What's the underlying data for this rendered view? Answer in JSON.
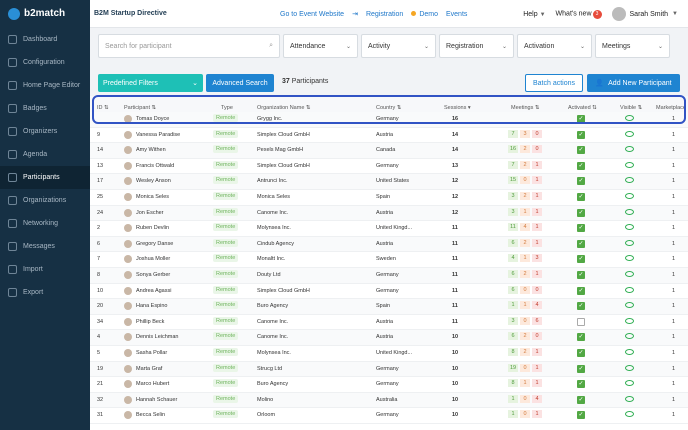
{
  "brand": {
    "logo": "b2match",
    "event": "B2M Startup Directive"
  },
  "topnav": {
    "go_to_event": "Go to Event Website",
    "registration": "Registration",
    "demo": "Demo",
    "events": "Events",
    "help": "Help",
    "whats_new": "What's new",
    "whats_new_count": "3",
    "user": "Sarah Smith"
  },
  "sidebar": [
    {
      "label": "Dashboard",
      "active": false
    },
    {
      "label": "Configuration",
      "active": false
    },
    {
      "label": "Home Page Editor",
      "active": false
    },
    {
      "label": "Badges",
      "active": false
    },
    {
      "label": "Organizers",
      "active": false
    },
    {
      "label": "Agenda",
      "active": false
    },
    {
      "label": "Participants",
      "active": true
    },
    {
      "label": "Organizations",
      "active": false
    },
    {
      "label": "Networking",
      "active": false
    },
    {
      "label": "Messages",
      "active": false
    },
    {
      "label": "Import",
      "active": false
    },
    {
      "label": "Export",
      "active": false
    }
  ],
  "filters": {
    "search_placeholder": "Search for participant",
    "attendance": "Attendance",
    "activity": "Activity",
    "registration": "Registration",
    "activation": "Activation",
    "meetings": "Meetings"
  },
  "actions": {
    "predefined": "Predefined Filters",
    "advanced": "Advanced Search",
    "count": "37",
    "count_label": "Participants",
    "batch": "Batch actions",
    "add": "Add New Participant"
  },
  "columns": {
    "id": "ID",
    "participant": "Participant",
    "type": "Type",
    "org": "Organization Name",
    "country": "Country",
    "sessions": "Sessions",
    "meetings": "Meetings",
    "activated": "Activated",
    "visible": "Visible",
    "marketplace": "Marketplace"
  },
  "rows": [
    {
      "id": "",
      "name": "Tomas Doyce",
      "type": "Remote",
      "org": "Grygg Inc.",
      "country": "Germany",
      "sessions": "16",
      "m1": "",
      "m2": "",
      "m3": "",
      "act": true,
      "mkt": "1"
    },
    {
      "id": "9",
      "name": "Vanessa Paradise",
      "type": "Remote",
      "org": "Simplex Cloud GmbH",
      "country": "Austria",
      "sessions": "14",
      "m1": "7",
      "m2": "3",
      "m3": "0",
      "act": true,
      "mkt": "1"
    },
    {
      "id": "14",
      "name": "Amy Withen",
      "type": "Remote",
      "org": "Pexels Mag GmbH",
      "country": "Canada",
      "sessions": "14",
      "m1": "16",
      "m2": "2",
      "m3": "0",
      "act": true,
      "mkt": "1"
    },
    {
      "id": "13",
      "name": "Francis Ottwald",
      "type": "Remote",
      "org": "Simplex Cloud GmbH",
      "country": "Germany",
      "sessions": "13",
      "m1": "7",
      "m2": "2",
      "m3": "1",
      "act": true,
      "mkt": "1"
    },
    {
      "id": "17",
      "name": "Wesley Anson",
      "type": "Remote",
      "org": "Antrunci Inc.",
      "country": "United States",
      "sessions": "12",
      "m1": "15",
      "m2": "0",
      "m3": "1",
      "act": true,
      "mkt": "1"
    },
    {
      "id": "25",
      "name": "Monica Seles",
      "type": "Remote",
      "org": "Monica Seles",
      "country": "Spain",
      "sessions": "12",
      "m1": "3",
      "m2": "2",
      "m3": "1",
      "act": true,
      "mkt": "1"
    },
    {
      "id": "24",
      "name": "Jon Escher",
      "type": "Remote",
      "org": "Canome Inc.",
      "country": "Austria",
      "sessions": "12",
      "m1": "3",
      "m2": "1",
      "m3": "1",
      "act": true,
      "mkt": "1"
    },
    {
      "id": "2",
      "name": "Ruben Devlin",
      "type": "Remote",
      "org": "Molynsea Inc.",
      "country": "United Kingd...",
      "sessions": "11",
      "m1": "11",
      "m2": "4",
      "m3": "1",
      "act": true,
      "mkt": "1"
    },
    {
      "id": "6",
      "name": "Gregory Danse",
      "type": "Remote",
      "org": "Cindub Agency",
      "country": "Austria",
      "sessions": "11",
      "m1": "6",
      "m2": "2",
      "m3": "1",
      "act": true,
      "mkt": "1"
    },
    {
      "id": "7",
      "name": "Joshua Moller",
      "type": "Remote",
      "org": "Monaltt Inc.",
      "country": "Sweden",
      "sessions": "11",
      "m1": "4",
      "m2": "1",
      "m3": "3",
      "act": true,
      "mkt": "1"
    },
    {
      "id": "8",
      "name": "Sonya Gerber",
      "type": "Remote",
      "org": "Douty Ltd",
      "country": "Germany",
      "sessions": "11",
      "m1": "6",
      "m2": "2",
      "m3": "1",
      "act": true,
      "mkt": "1"
    },
    {
      "id": "10",
      "name": "Andrea Agassi",
      "type": "Remote",
      "org": "Simplex Cloud GmbH",
      "country": "Germany",
      "sessions": "11",
      "m1": "6",
      "m2": "0",
      "m3": "0",
      "act": true,
      "mkt": "1"
    },
    {
      "id": "20",
      "name": "Hana Espino",
      "type": "Remote",
      "org": "Buro Agency",
      "country": "Spain",
      "sessions": "11",
      "m1": "1",
      "m2": "1",
      "m3": "4",
      "act": true,
      "mkt": "1"
    },
    {
      "id": "34",
      "name": "Phillip Beck",
      "type": "Remote",
      "org": "Canome Inc.",
      "country": "Austria",
      "sessions": "11",
      "m1": "3",
      "m2": "0",
      "m3": "6",
      "act": false,
      "mkt": "1"
    },
    {
      "id": "4",
      "name": "Dennis Leichman",
      "type": "Remote",
      "org": "Canome Inc.",
      "country": "Austria",
      "sessions": "10",
      "m1": "6",
      "m2": "2",
      "m3": "0",
      "act": true,
      "mkt": "1"
    },
    {
      "id": "5",
      "name": "Sasha Pollar",
      "type": "Remote",
      "org": "Molynsea Inc.",
      "country": "United Kingd...",
      "sessions": "10",
      "m1": "8",
      "m2": "2",
      "m3": "1",
      "act": true,
      "mkt": "1"
    },
    {
      "id": "19",
      "name": "Marta Graf",
      "type": "Remote",
      "org": "Strucg Ltd",
      "country": "Germany",
      "sessions": "10",
      "m1": "19",
      "m2": "0",
      "m3": "1",
      "act": true,
      "mkt": "1"
    },
    {
      "id": "21",
      "name": "Marco Hubert",
      "type": "Remote",
      "org": "Buro Agency",
      "country": "Germany",
      "sessions": "10",
      "m1": "8",
      "m2": "1",
      "m3": "1",
      "act": true,
      "mkt": "1"
    },
    {
      "id": "32",
      "name": "Hannah Schauer",
      "type": "Remote",
      "org": "Molino",
      "country": "Australia",
      "sessions": "10",
      "m1": "1",
      "m2": "0",
      "m3": "4",
      "act": true,
      "mkt": "1"
    },
    {
      "id": "31",
      "name": "Becca Selin",
      "type": "Remote",
      "org": "Orloom",
      "country": "Germany",
      "sessions": "10",
      "m1": "1",
      "m2": "0",
      "m3": "1",
      "act": true,
      "mkt": "1"
    }
  ]
}
